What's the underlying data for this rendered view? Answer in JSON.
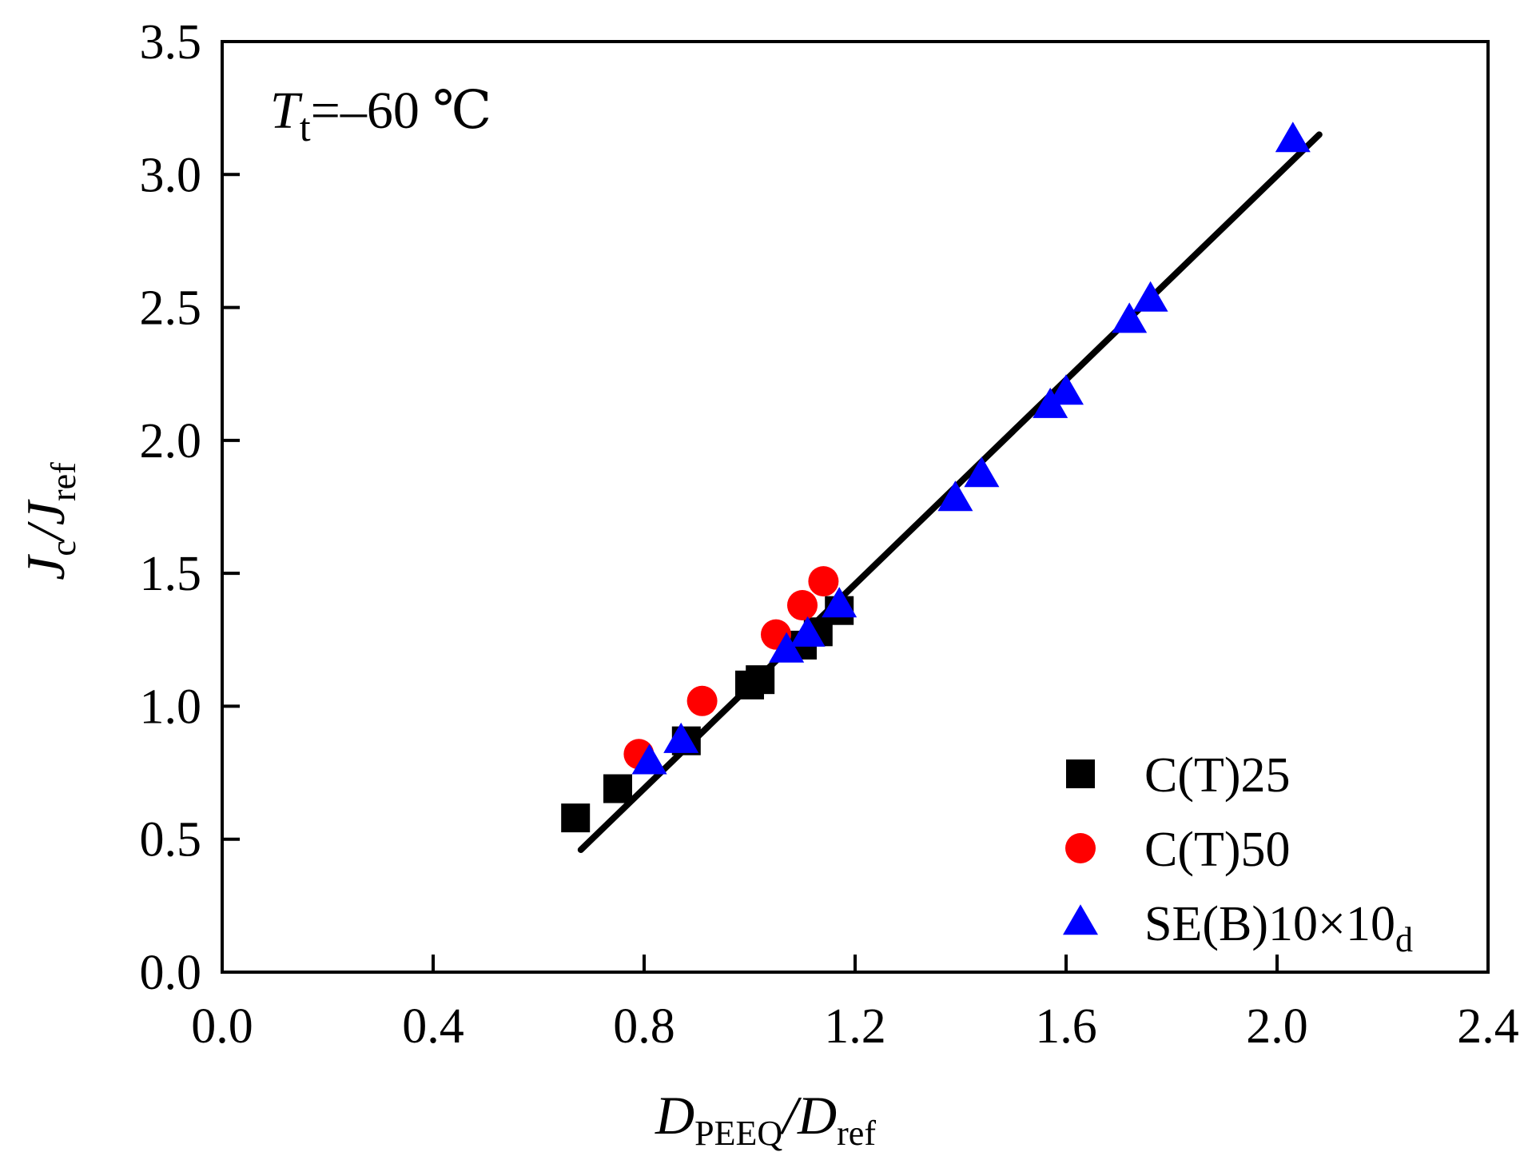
{
  "chart_data": {
    "type": "scatter",
    "title": "",
    "annotation": {
      "symbol": "T",
      "sub": "t",
      "text": "=–60 ℃"
    },
    "xlabel": {
      "main": "D",
      "sub": "PEEQ",
      "sep": "/",
      "main2": "D",
      "sub2": "ref"
    },
    "ylabel": {
      "main": "J",
      "sub": "c",
      "sep": "/",
      "main2": "J",
      "sub2": "ref"
    },
    "xlim": [
      0.0,
      2.4
    ],
    "ylim": [
      0.0,
      3.5
    ],
    "xticks": [
      0.0,
      0.4,
      0.8,
      1.2,
      1.6,
      2.0,
      2.4
    ],
    "yticks": [
      0.0,
      0.5,
      1.0,
      1.5,
      2.0,
      2.5,
      3.0,
      3.5
    ],
    "xtick_labels": [
      "0.0",
      "0.4",
      "0.8",
      "1.2",
      "1.6",
      "2.0",
      "2.4"
    ],
    "ytick_labels": [
      "0.0",
      "0.5",
      "1.0",
      "1.5",
      "2.0",
      "2.5",
      "3.0",
      "3.5"
    ],
    "legend_position": "bottom-right",
    "series": [
      {
        "name": "C(T)25",
        "label_main": "C(T)25",
        "label_sub": "",
        "marker": "square",
        "color": "#000000",
        "x": [
          0.67,
          0.75,
          0.88,
          1.0,
          1.02,
          1.1,
          1.13,
          1.17
        ],
        "y": [
          0.58,
          0.69,
          0.87,
          1.08,
          1.1,
          1.23,
          1.28,
          1.36
        ]
      },
      {
        "name": "C(T)50",
        "label_main": "C(T)50",
        "label_sub": "",
        "marker": "circle",
        "color": "#ff0000",
        "x": [
          0.79,
          0.91,
          1.05,
          1.1,
          1.14
        ],
        "y": [
          0.82,
          1.02,
          1.27,
          1.38,
          1.47
        ]
      },
      {
        "name": "SE(B)10×10d",
        "label_main": " SE(B)10×10",
        "label_sub": "d",
        "marker": "triangle",
        "color": "#0000ff",
        "x": [
          0.81,
          0.87,
          1.07,
          1.11,
          1.17,
          1.39,
          1.44,
          1.57,
          1.6,
          1.72,
          1.76,
          2.03
        ],
        "y": [
          0.79,
          0.87,
          1.21,
          1.27,
          1.38,
          1.78,
          1.87,
          2.13,
          2.18,
          2.45,
          2.53,
          3.13
        ]
      }
    ],
    "fit_line": {
      "x": [
        0.68,
        2.08
      ],
      "y": [
        0.46,
        3.15
      ],
      "color": "#000000"
    }
  }
}
